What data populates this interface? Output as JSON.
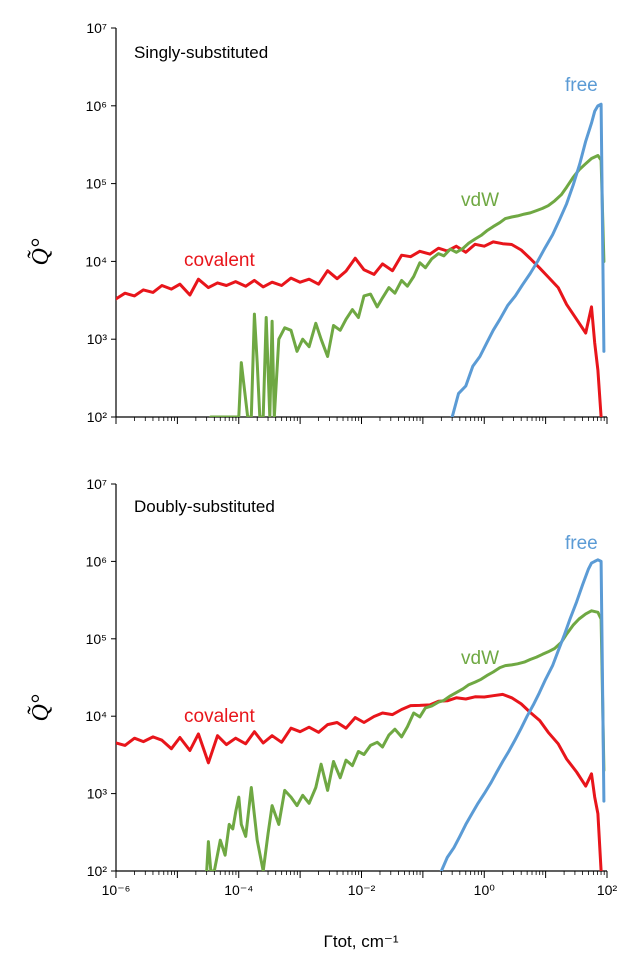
{
  "chart_data": [
    {
      "type": "line",
      "title": "Singly-substituted",
      "xlabel": "Γtot, cm⁻¹",
      "ylabel": "Q̃°",
      "xscale": "log",
      "yscale": "log",
      "xlim": [
        1e-06,
        100
      ],
      "ylim": [
        100,
        10000000
      ],
      "colors": {
        "covalent": "#e8151b",
        "vdW": "#6fa843",
        "free": "#5b9bd5"
      },
      "series": [
        {
          "name": "covalent",
          "x": [
            1e-06,
            1.4e-06,
            2e-06,
            2.8e-06,
            4e-06,
            5.6e-06,
            8e-06,
            1.1e-05,
            1.6e-05,
            2.2e-05,
            3.2e-05,
            4.5e-05,
            6.3e-05,
            8.9e-05,
            0.00013,
            0.00018,
            0.00025,
            0.00035,
            0.0005,
            0.00071,
            0.001,
            0.0014,
            0.002,
            0.0028,
            0.004,
            0.0056,
            0.0079,
            0.011,
            0.016,
            0.022,
            0.032,
            0.045,
            0.063,
            0.089,
            0.13,
            0.18,
            0.25,
            0.35,
            0.5,
            0.71,
            1,
            1.4,
            2,
            2.8,
            4,
            5.6,
            8,
            11,
            16,
            22,
            32,
            45,
            56,
            63,
            71,
            80
          ],
          "y": [
            3300,
            3900,
            3600,
            4300,
            4000,
            4900,
            4400,
            5100,
            3700,
            5900,
            4600,
            5300,
            4900,
            5500,
            4800,
            5700,
            4700,
            5400,
            4900,
            6100,
            5400,
            5900,
            5100,
            7600,
            6000,
            7500,
            11000,
            7800,
            6800,
            9300,
            7600,
            12000,
            11500,
            13500,
            12400,
            14800,
            13600,
            15700,
            13100,
            16600,
            15700,
            17800,
            16900,
            16500,
            14000,
            10900,
            8200,
            6300,
            4600,
            2800,
            1800,
            1200,
            2600,
            900,
            400,
            100
          ]
        },
        {
          "name": "vdW",
          "x": [
            3.5e-05,
            0.0001,
            0.00011,
            0.00014,
            0.00016,
            0.00018,
            0.0002,
            0.00022,
            0.00025,
            0.00028,
            0.00032,
            0.00035,
            0.00038,
            0.00045,
            0.00056,
            0.00071,
            0.00089,
            0.0011,
            0.0014,
            0.0018,
            0.0022,
            0.0028,
            0.0035,
            0.0045,
            0.0056,
            0.0071,
            0.0089,
            0.011,
            0.014,
            0.018,
            0.022,
            0.028,
            0.035,
            0.045,
            0.056,
            0.071,
            0.089,
            0.11,
            0.14,
            0.18,
            0.22,
            0.28,
            0.35,
            0.45,
            0.56,
            0.71,
            0.89,
            1.1,
            1.4,
            1.8,
            2.2,
            2.8,
            3.5,
            4.5,
            5.6,
            7.1,
            8.9,
            11,
            14,
            18,
            22,
            28,
            35,
            45,
            56,
            71,
            80,
            89
          ],
          "y": [
            100,
            100,
            500,
            100,
            100,
            2100,
            500,
            100,
            100,
            1900,
            100,
            1700,
            100,
            1000,
            1400,
            1300,
            700,
            1000,
            800,
            1600,
            1000,
            600,
            1500,
            1300,
            1800,
            2400,
            1900,
            3600,
            3800,
            2600,
            3400,
            4600,
            3900,
            5700,
            4800,
            6400,
            9600,
            8300,
            10800,
            12600,
            11800,
            14400,
            13100,
            14700,
            17200,
            19400,
            21600,
            24700,
            28000,
            31500,
            35500,
            37200,
            38500,
            40500,
            42000,
            45000,
            48000,
            52000,
            60000,
            72000,
            90000,
            120000,
            150000,
            180000,
            210000,
            230000,
            200000,
            10000
          ]
        },
        {
          "name": "free",
          "x": [
            0.3,
            0.38,
            0.5,
            0.65,
            0.85,
            1.1,
            1.4,
            1.8,
            2.4,
            3.2,
            4.2,
            5.6,
            7.4,
            9.8,
            13,
            17,
            22,
            28,
            36,
            45,
            56,
            63,
            71,
            80,
            89
          ],
          "y": [
            100,
            200,
            250,
            450,
            600,
            900,
            1300,
            1800,
            2700,
            3600,
            5000,
            7000,
            10000,
            15000,
            22000,
            35000,
            55000,
            95000,
            180000,
            350000,
            600000,
            850000,
            1000000,
            1050000,
            700
          ]
        }
      ],
      "series_labels": {
        "covalent": "covalent",
        "vdW": "vdW",
        "free": "free"
      },
      "y_tick_labels": [
        "10²",
        "10³",
        "10⁴",
        "10⁵",
        "10⁶",
        "10⁷"
      ]
    },
    {
      "type": "line",
      "title": "Doubly-substituted",
      "xlabel": "Γtot, cm⁻¹",
      "ylabel": "Q̃°",
      "xscale": "log",
      "yscale": "log",
      "xlim": [
        1e-06,
        100
      ],
      "ylim": [
        100,
        10000000
      ],
      "colors": {
        "covalent": "#e8151b",
        "vdW": "#6fa843",
        "free": "#5b9bd5"
      },
      "series": [
        {
          "name": "covalent",
          "x": [
            1e-06,
            1.4e-06,
            2e-06,
            2.8e-06,
            4e-06,
            5.6e-06,
            8e-06,
            1.1e-05,
            1.6e-05,
            2.2e-05,
            3.2e-05,
            4.5e-05,
            6.3e-05,
            8.9e-05,
            0.00013,
            0.00018,
            0.00025,
            0.00035,
            0.0005,
            0.00071,
            0.001,
            0.0014,
            0.002,
            0.0028,
            0.004,
            0.0056,
            0.0079,
            0.011,
            0.016,
            0.022,
            0.032,
            0.045,
            0.063,
            0.089,
            0.13,
            0.18,
            0.25,
            0.35,
            0.5,
            0.71,
            1,
            1.4,
            2,
            2.8,
            4,
            5.6,
            8,
            11,
            16,
            22,
            32,
            45,
            56,
            63,
            71,
            80
          ],
          "y": [
            4500,
            4200,
            5200,
            4700,
            5400,
            4900,
            3800,
            5300,
            3600,
            5900,
            2500,
            5600,
            4300,
            5200,
            4400,
            6300,
            4500,
            5600,
            4600,
            7000,
            6300,
            7200,
            6200,
            7800,
            8300,
            7000,
            9600,
            8300,
            9900,
            11000,
            10500,
            12200,
            13700,
            13800,
            14000,
            15600,
            15800,
            17300,
            16700,
            17800,
            17700,
            18400,
            19100,
            17300,
            14400,
            11200,
            8800,
            6200,
            4400,
            2800,
            1900,
            1250,
            1800,
            900,
            550,
            100
          ]
        },
        {
          "name": "vdW",
          "x": [
            3e-05,
            3.2e-05,
            3.5e-05,
            4e-05,
            5e-05,
            6e-05,
            7e-05,
            8e-05,
            9e-05,
            0.0001,
            0.00011,
            0.00013,
            0.00016,
            0.0002,
            0.00025,
            0.0003,
            0.00035,
            0.00045,
            0.00056,
            0.00071,
            0.00089,
            0.0011,
            0.0014,
            0.0018,
            0.0022,
            0.0028,
            0.0035,
            0.0045,
            0.0056,
            0.0071,
            0.0089,
            0.011,
            0.014,
            0.018,
            0.022,
            0.028,
            0.035,
            0.045,
            0.056,
            0.071,
            0.089,
            0.11,
            0.14,
            0.18,
            0.22,
            0.28,
            0.35,
            0.45,
            0.56,
            0.71,
            0.89,
            1.1,
            1.4,
            1.8,
            2.2,
            2.8,
            3.5,
            4.5,
            5.6,
            7.1,
            8.9,
            11,
            14,
            18,
            22,
            28,
            35,
            45,
            56,
            71,
            80,
            89
          ],
          "y": [
            100,
            240,
            100,
            100,
            250,
            160,
            400,
            350,
            600,
            900,
            400,
            280,
            1200,
            250,
            100,
            300,
            700,
            400,
            1100,
            900,
            700,
            950,
            750,
            1200,
            2400,
            1100,
            2600,
            1600,
            2700,
            2300,
            3500,
            3200,
            4200,
            4600,
            4000,
            5700,
            6800,
            5400,
            7300,
            11000,
            9800,
            12800,
            13600,
            15200,
            16000,
            18300,
            20200,
            22600,
            25500,
            27600,
            30000,
            33500,
            37200,
            42500,
            45000,
            46000,
            47500,
            50000,
            54000,
            58000,
            63000,
            68000,
            75000,
            90000,
            115000,
            150000,
            180000,
            210000,
            230000,
            220000,
            180000,
            2000
          ]
        },
        {
          "name": "free",
          "x": [
            0.2,
            0.25,
            0.32,
            0.4,
            0.5,
            0.63,
            0.79,
            1,
            1.3,
            1.6,
            2,
            2.5,
            3.2,
            4,
            5,
            6.3,
            7.9,
            10,
            13,
            16,
            20,
            25,
            32,
            40,
            50,
            56,
            63,
            71,
            80,
            89
          ],
          "y": [
            100,
            150,
            200,
            280,
            400,
            550,
            750,
            1000,
            1400,
            1900,
            2600,
            3500,
            5000,
            7000,
            10000,
            14000,
            20000,
            30000,
            45000,
            70000,
            110000,
            180000,
            300000,
            500000,
            800000,
            950000,
            1000000,
            1050000,
            1000000,
            800
          ]
        }
      ],
      "series_labels": {
        "covalent": "covalent",
        "vdW": "vdW",
        "free": "free"
      },
      "y_tick_labels": [
        "10²",
        "10³",
        "10⁴",
        "10⁵",
        "10⁶",
        "10⁷"
      ],
      "x_tick_labels": [
        "10⁻⁶",
        "10⁻⁴",
        "10⁻²",
        "10⁰",
        "10²"
      ]
    }
  ]
}
